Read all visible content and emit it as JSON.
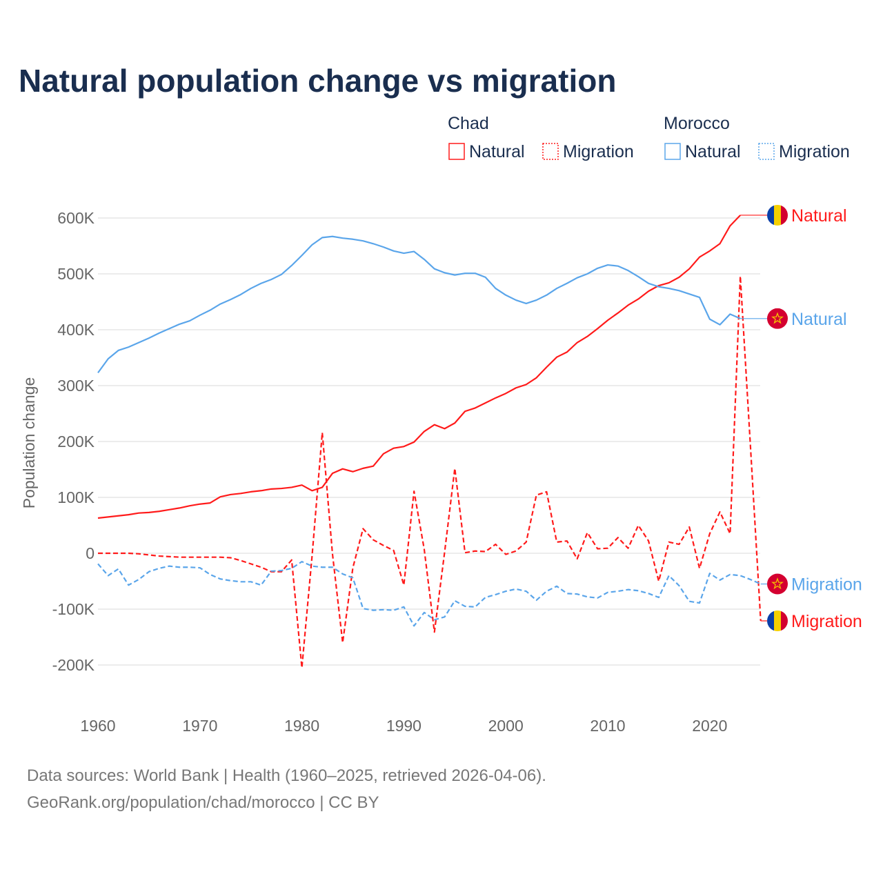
{
  "colors": {
    "chad": "#ff1a1a",
    "morocco": "#5aa5ea",
    "title": "#1a2e4f"
  },
  "chart_data": {
    "type": "line",
    "title": "Natural population change vs migration",
    "ylabel": "Population change",
    "xlabel": "",
    "xlim": [
      1960,
      2025
    ],
    "ylim": [
      -250000,
      620000
    ],
    "x_ticks": [
      "1960",
      "1970",
      "1980",
      "1990",
      "2000",
      "2010",
      "2020"
    ],
    "y_ticks": [
      {
        "value": 600000,
        "label": "600K"
      },
      {
        "value": 500000,
        "label": "500K"
      },
      {
        "value": 400000,
        "label": "400K"
      },
      {
        "value": 300000,
        "label": "300K"
      },
      {
        "value": 200000,
        "label": "200K"
      },
      {
        "value": 100000,
        "label": "100K"
      },
      {
        "value": 0,
        "label": "0"
      },
      {
        "value": -100000,
        "label": "-100K"
      },
      {
        "value": -200000,
        "label": "-200K"
      }
    ],
    "grid": true,
    "legend": {
      "placement": "top-right",
      "groups": [
        {
          "name": "Chad",
          "entries": [
            "Natural",
            "Migration"
          ]
        },
        {
          "name": "Morocco",
          "entries": [
            "Natural",
            "Migration"
          ]
        }
      ]
    },
    "start_year": 1960,
    "series": [
      {
        "name": "Natural",
        "country": "Chad",
        "style": "solid",
        "color": "#ff1a1a",
        "end_label": "Natural",
        "values": [
          63000,
          65000,
          67000,
          69000,
          72000,
          73000,
          75000,
          78000,
          81000,
          85000,
          88000,
          90000,
          101000,
          105000,
          107000,
          110000,
          112000,
          115000,
          116000,
          118000,
          122000,
          112000,
          118000,
          143000,
          151000,
          146000,
          152000,
          156000,
          178000,
          188000,
          191000,
          199000,
          218000,
          230000,
          223000,
          233000,
          254000,
          260000,
          269000,
          278000,
          286000,
          296000,
          302000,
          314000,
          333000,
          351000,
          360000,
          377000,
          388000,
          402000,
          417000,
          430000,
          444000,
          455000,
          469000,
          479000,
          484000,
          494000,
          509000,
          530000,
          541000,
          554000,
          586000,
          605000
        ]
      },
      {
        "name": "Migration",
        "country": "Chad",
        "style": "dashed",
        "color": "#ff1a1a",
        "end_label": "Migration",
        "values": [
          0,
          0,
          0,
          0,
          -1000,
          -3000,
          -5000,
          -6000,
          -7000,
          -7000,
          -7000,
          -7000,
          -7000,
          -8000,
          -13000,
          -19000,
          -25000,
          -33000,
          -33000,
          -12000,
          -205000,
          -5000,
          216000,
          -1000,
          -160000,
          -26000,
          44000,
          24000,
          14000,
          5000,
          -57000,
          111000,
          7000,
          -141000,
          2000,
          152000,
          1000,
          4000,
          3000,
          16000,
          -2000,
          4000,
          20000,
          104000,
          110000,
          20000,
          22000,
          -10000,
          37000,
          8000,
          9000,
          28000,
          9000,
          50000,
          22000,
          -50000,
          20000,
          16000,
          47000,
          -27000,
          35000,
          74000,
          35000,
          496000,
          190000,
          -121000
        ]
      },
      {
        "name": "Natural",
        "country": "Morocco",
        "style": "solid",
        "color": "#5aa5ea",
        "end_label": "Natural",
        "values": [
          323000,
          348000,
          363000,
          369000,
          377000,
          385000,
          394000,
          402000,
          410000,
          416000,
          426000,
          435000,
          446000,
          454000,
          463000,
          474000,
          483000,
          490000,
          499000,
          515000,
          533000,
          552000,
          565000,
          567000,
          564000,
          562000,
          559000,
          554000,
          548000,
          541000,
          537000,
          540000,
          526000,
          509000,
          502000,
          498000,
          501000,
          501000,
          494000,
          474000,
          462000,
          453000,
          447000,
          453000,
          462000,
          474000,
          483000,
          493000,
          500000,
          510000,
          516000,
          514000,
          506000,
          495000,
          483000,
          477000,
          474000,
          470000,
          464000,
          458000,
          419000,
          409000,
          428000,
          420000
        ]
      },
      {
        "name": "Migration",
        "country": "Morocco",
        "style": "dashed",
        "color": "#5aa5ea",
        "end_label": "Migration",
        "values": [
          -19000,
          -40000,
          -28000,
          -57000,
          -47000,
          -33000,
          -27000,
          -23000,
          -25000,
          -25000,
          -26000,
          -38000,
          -46000,
          -49000,
          -51000,
          -51000,
          -57000,
          -32000,
          -31000,
          -27000,
          -15000,
          -23000,
          -25000,
          -25000,
          -37000,
          -44000,
          -99000,
          -102000,
          -101000,
          -102000,
          -96000,
          -130000,
          -106000,
          -119000,
          -114000,
          -85000,
          -95000,
          -96000,
          -79000,
          -74000,
          -68000,
          -64000,
          -68000,
          -84000,
          -68000,
          -59000,
          -72000,
          -73000,
          -78000,
          -80000,
          -70000,
          -68000,
          -65000,
          -67000,
          -72000,
          -79000,
          -40000,
          -58000,
          -86000,
          -89000,
          -36000,
          -48000,
          -38000,
          -40000,
          -47000,
          -55000
        ]
      }
    ]
  },
  "source": {
    "line1": "Data sources: World Bank | Health (1960–2025, retrieved 2026-04-06).",
    "line2": "GeoRank.org/population/chad/morocco | CC BY"
  }
}
